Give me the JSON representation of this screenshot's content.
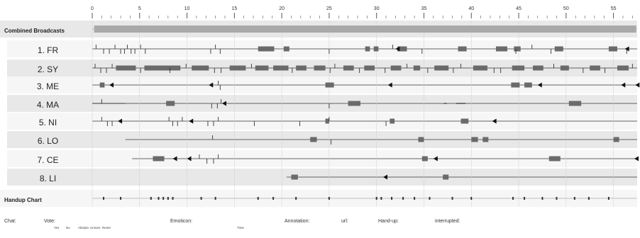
{
  "chart_data": {
    "type": "timeline",
    "x": {
      "min": 0,
      "max": 57.5,
      "major_ticks": [
        0,
        5,
        10,
        15,
        20,
        25,
        30,
        35,
        40,
        45,
        50,
        55
      ]
    },
    "rows": [
      {
        "label": "Combined Broadcasts",
        "style": "header",
        "span": [
          0,
          57.5
        ]
      },
      {
        "label": "1. FR",
        "span": [
          0,
          57.5
        ]
      },
      {
        "label": "2. SY",
        "span": [
          0,
          57.5
        ]
      },
      {
        "label": "3. ME",
        "span": [
          0,
          57.5
        ]
      },
      {
        "label": "4. MA",
        "span": [
          0,
          57.5
        ]
      },
      {
        "label": "5. NI",
        "span": [
          0,
          57.5
        ]
      },
      {
        "label": "6. LO",
        "span": [
          3.5,
          57.5
        ]
      },
      {
        "label": "7. CE",
        "span": [
          4.2,
          57.5
        ]
      },
      {
        "label": "8. LI",
        "span": [
          20.5,
          57.5
        ]
      },
      {
        "label": "Handup Chart",
        "style": "header",
        "span": [
          0,
          57.5
        ]
      }
    ],
    "events": {
      "1. FR": {
        "blocks": [
          [
            17.5,
            19.2
          ],
          [
            20.2,
            20.8
          ],
          [
            28.8,
            29.3
          ],
          [
            29.7,
            30.2
          ],
          [
            32.2,
            33.2
          ],
          [
            38.6,
            39.5
          ],
          [
            42.6,
            43.8
          ],
          [
            44.5,
            45.2
          ],
          [
            48.8,
            49.7
          ],
          [
            54.5,
            55.4
          ]
        ],
        "ticks": [
          0.4,
          1.2,
          1.8,
          2.4,
          3.0,
          3.4,
          3.7,
          4.1,
          4.5,
          5.1,
          5.6,
          12.5,
          13.0,
          13.5,
          25.0,
          31.7,
          34.8,
          44.7,
          46.4,
          48.4,
          56.4
        ],
        "arrows": [
          32.0,
          56.2
        ]
      },
      "2. SY": {
        "blocks": [
          [
            2.5,
            4.6
          ],
          [
            5.5,
            9.3
          ],
          [
            10.5,
            12.3
          ],
          [
            14.5,
            16.2
          ],
          [
            17.2,
            18.6
          ],
          [
            19.1,
            20.7
          ],
          [
            21.5,
            22.6
          ],
          [
            23.4,
            24.6
          ],
          [
            26.5,
            27.6
          ],
          [
            28.7,
            29.8
          ],
          [
            31.5,
            32.6
          ],
          [
            33.9,
            34.6
          ],
          [
            36.1,
            37.6
          ],
          [
            40.2,
            41.7
          ],
          [
            44.3,
            45.6
          ],
          [
            46.5,
            47.6
          ],
          [
            49.4,
            50.3
          ],
          [
            52.5,
            53.6
          ],
          [
            55.4,
            56.6
          ]
        ],
        "ticks": [
          0.3,
          0.9,
          1.5,
          2.1,
          5.1,
          8.2,
          9.9,
          12.9,
          13.6,
          16.8,
          21.1,
          25.1,
          25.6,
          28.2,
          30.9,
          33.2,
          35.4,
          38.1,
          38.9,
          42.4,
          43.1,
          48.7,
          51.8,
          54.1,
          57.0
        ]
      },
      "3. ME": {
        "blocks": [
          [
            0.8,
            1.3
          ],
          [
            24.6,
            25.5
          ],
          [
            44.2,
            45.1
          ],
          [
            45.6,
            46.4
          ]
        ],
        "ticks": [
          13.3,
          13.5
        ],
        "arrows": [
          1.8,
          12.3,
          31.2,
          47.0,
          55.8,
          57.3
        ]
      },
      "4. MA": {
        "blocks": [
          [
            7.8,
            8.7
          ],
          [
            27.0,
            28.3
          ],
          [
            50.3,
            51.6
          ]
        ],
        "ticks": [
          1.0,
          12.6,
          13.2,
          13.6,
          25.0
        ],
        "arrows": [
          13.7
        ],
        "dashes": [
          [
            37.1,
            37.4
          ],
          [
            38.4,
            39.4
          ]
        ],
        "span": [
          0,
          3.5
        ]
      },
      "5. NI": {
        "blocks": [
          [
            24.6,
            25.0
          ],
          [
            31.4,
            31.9
          ],
          [
            38.9,
            39.7
          ]
        ],
        "ticks": [
          1.0,
          1.6,
          2.1,
          8.1,
          8.5,
          9.0,
          9.5,
          12.2,
          12.8,
          13.3,
          17.1,
          21.9,
          25.0,
          31.0
        ],
        "arrows": [
          2.7,
          10.2,
          42.2
        ]
      },
      "6. LO": {
        "blocks": [
          [
            23.0,
            23.7
          ],
          [
            34.4,
            35.0
          ],
          [
            40.0,
            40.7
          ],
          [
            41.2,
            41.8
          ],
          [
            55.0,
            55.6
          ]
        ],
        "ticks": [
          12.7,
          25.2
        ]
      },
      "7. CE": {
        "blocks": [
          [
            6.4,
            7.6
          ],
          [
            34.8,
            35.4
          ],
          [
            48.2,
            49.4
          ]
        ],
        "ticks": [
          11.3,
          12.1,
          12.8,
          13.3
        ],
        "arrows": [
          8.5,
          10.0,
          36.0,
          57.2
        ]
      },
      "8. LI": {
        "blocks": [
          [
            21.0,
            21.7
          ],
          [
            37.0,
            37.6
          ]
        ],
        "arrows": [
          30.7
        ]
      },
      "Combined Broadcasts": {
        "blocks": [
          [
            0.2,
            57.4
          ]
        ]
      },
      "Handup Chart": {
        "dots": [
          1.2,
          3.0,
          6.2,
          7.0,
          7.5,
          8.0,
          8.5,
          11.5,
          13.0,
          17.5,
          19.1,
          21.5,
          25.0,
          30.0,
          30.5,
          31.6,
          32.8,
          34.0,
          35.6,
          38.0,
          40.0,
          44.4,
          45.6,
          47.5,
          49.0,
          50.9,
          52.4,
          54.5
        ]
      }
    },
    "legend": [
      {
        "label": "Chat:"
      },
      {
        "label": "Vote:",
        "subs": [
          "Yes",
          "No",
          "Abstain",
          "Unsure",
          "Reset"
        ]
      },
      {
        "label": "Emoticon:",
        "subs": [
          "Time"
        ]
      },
      {
        "label": "Annotation:"
      },
      {
        "label": "url:"
      },
      {
        "label": "Hand-up:"
      },
      {
        "label": "interrupted:"
      }
    ]
  },
  "colors": {
    "row_band": "#e8e8e8",
    "row_band_alt": "#f6f6f6",
    "block": "#6a6a6a",
    "block_light": "#a9a9a9",
    "line": "#333333",
    "grid": "#d0d0d0"
  }
}
